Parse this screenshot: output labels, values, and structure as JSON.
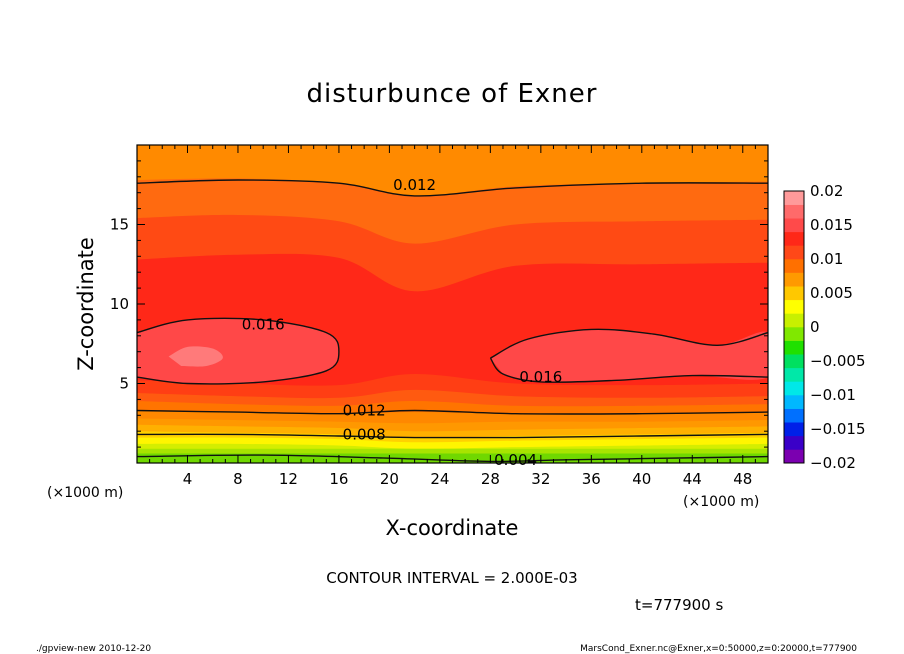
{
  "chart_data": {
    "type": "contour",
    "title": "disturbunce of Exner",
    "xlabel": "X-coordinate",
    "ylabel": "Z-coordinate",
    "x_unit": "(×1000 m)",
    "xlim": [
      0,
      50
    ],
    "ylim": [
      0,
      20
    ],
    "x_ticks": [
      "4",
      "8",
      "12",
      "16",
      "20",
      "24",
      "28",
      "32",
      "36",
      "40",
      "44",
      "48"
    ],
    "y_ticks": [
      "5",
      "10",
      "15"
    ],
    "contour_interval": "CONTOUR INTERVAL = 2.000E-03",
    "time_label": "t=777900 s",
    "colorbar": {
      "ticks": [
        "0.02",
        "0.015",
        "0.01",
        "0.005",
        "0",
        "−0.005",
        "−0.01",
        "−0.015",
        "−0.02"
      ],
      "range": [
        -0.02,
        0.02
      ],
      "colors": [
        "#7b00b0",
        "#3a00c8",
        "#0020e8",
        "#0070ff",
        "#00b8ff",
        "#00e8e8",
        "#00e8a8",
        "#00e060",
        "#20e000",
        "#80e800",
        "#c8f000",
        "#ffff00",
        "#ffc800",
        "#ff9a00",
        "#ff7000",
        "#ff4818",
        "#ff2818",
        "#ff4a4a",
        "#ff6a6a",
        "#ff9a9a"
      ]
    },
    "contour_labels": [
      {
        "text": "0.012",
        "x": 22,
        "z": 17.5
      },
      {
        "text": "0.016",
        "x": 10,
        "z": 8.7
      },
      {
        "text": "0.016",
        "x": 32,
        "z": 5.4
      },
      {
        "text": "0.012",
        "x": 18,
        "z": 3.3
      },
      {
        "text": "0.008",
        "x": 18,
        "z": 1.8
      },
      {
        "text": "0.004",
        "x": 30,
        "z": 0.2
      }
    ],
    "bands": [
      {
        "level": 0.002,
        "color": "#70d800",
        "z": [
          0.6,
          0.6,
          0.6,
          0.6,
          0.6,
          0.6,
          0.6
        ]
      },
      {
        "level": 0.003,
        "color": "#a8e400",
        "z": [
          0.9,
          0.9,
          0.9,
          0.9,
          0.9,
          0.9,
          0.9
        ]
      },
      {
        "level": 0.004,
        "color": "#d4ee00",
        "z": [
          1.2,
          1.2,
          1.1,
          0.9,
          1.0,
          1.1,
          1.2
        ]
      },
      {
        "level": 0.005,
        "color": "#fff500",
        "z": [
          1.6,
          1.6,
          1.5,
          1.3,
          1.4,
          1.5,
          1.6
        ]
      },
      {
        "level": 0.006,
        "color": "#ffd200",
        "z": [
          2.0,
          1.9,
          1.8,
          1.6,
          1.7,
          1.8,
          1.9
        ]
      },
      {
        "level": 0.007,
        "color": "#ffb000",
        "z": [
          2.4,
          2.3,
          2.2,
          2.0,
          2.1,
          2.2,
          2.3
        ]
      },
      {
        "level": 0.008,
        "color": "#ff9800",
        "z": [
          2.8,
          2.7,
          2.6,
          2.5,
          2.6,
          2.6,
          2.7
        ]
      },
      {
        "level": 0.009,
        "color": "#ff8800",
        "z": [
          3.3,
          3.2,
          3.1,
          3.2,
          3.1,
          3.1,
          3.2
        ]
      },
      {
        "level": 0.01,
        "color": "#ff7400",
        "z": [
          3.9,
          3.7,
          3.6,
          3.9,
          3.6,
          3.6,
          3.7
        ]
      },
      {
        "level": 0.011,
        "color": "#ff5a10",
        "z": [
          4.4,
          4.2,
          4.1,
          4.6,
          4.2,
          4.1,
          4.2
        ]
      },
      {
        "level": 0.012,
        "color": "#ff3e14",
        "z": [
          5.2,
          5.0,
          4.9,
          5.6,
          5.0,
          4.9,
          5.0
        ]
      },
      {
        "level": 0.013,
        "color": "#ff2818",
        "z": [
          12.8,
          13.1,
          12.9,
          10.8,
          12.4,
          12.5,
          12.6
        ]
      },
      {
        "level": 0.014,
        "color": "#ff4a14",
        "z": [
          15.4,
          15.6,
          15.2,
          13.8,
          15.0,
          15.2,
          15.3
        ]
      },
      {
        "level": 0.015,
        "color": "#ff6a10",
        "z": [
          17.8,
          17.9,
          17.6,
          16.8,
          17.4,
          17.6,
          17.7
        ]
      },
      {
        "level": 0.016,
        "color": "#ff8a00",
        "z": [
          20,
          20,
          20,
          20,
          20,
          20,
          20
        ]
      }
    ],
    "band_x": [
      0,
      8,
      16,
      22,
      30,
      40,
      50
    ],
    "blobs": [
      {
        "color": "#ff4848",
        "points": [
          [
            0,
            8.2
          ],
          [
            4,
            9.0
          ],
          [
            10,
            9.0
          ],
          [
            15,
            8.2
          ],
          [
            16,
            7.0
          ],
          [
            15,
            5.8
          ],
          [
            10,
            5.1
          ],
          [
            4,
            5.0
          ],
          [
            0,
            5.4
          ]
        ]
      },
      {
        "color": "#ff4848",
        "points": [
          [
            28,
            6.6
          ],
          [
            31,
            7.8
          ],
          [
            36,
            8.4
          ],
          [
            41,
            8.1
          ],
          [
            46,
            7.4
          ],
          [
            50,
            8.2
          ],
          [
            50,
            5.4
          ],
          [
            44,
            5.5
          ],
          [
            38,
            5.2
          ],
          [
            32,
            5.1
          ],
          [
            29,
            5.6
          ]
        ]
      },
      {
        "color": "#ff7a7a",
        "points": [
          [
            2.5,
            6.7
          ],
          [
            4,
            7.3
          ],
          [
            6,
            7.2
          ],
          [
            6.8,
            6.6
          ],
          [
            5.5,
            6.1
          ],
          [
            3.5,
            6.1
          ]
        ]
      }
    ],
    "contours": [
      {
        "points": [
          [
            0,
            17.6
          ],
          [
            8,
            17.8
          ],
          [
            16,
            17.6
          ],
          [
            22,
            16.8
          ],
          [
            30,
            17.3
          ],
          [
            40,
            17.6
          ],
          [
            50,
            17.6
          ]
        ]
      },
      {
        "points": [
          [
            0,
            8.2
          ],
          [
            4,
            9.0
          ],
          [
            10,
            9.0
          ],
          [
            15,
            8.2
          ],
          [
            16,
            7.0
          ],
          [
            15,
            5.8
          ],
          [
            10,
            5.1
          ],
          [
            4,
            5.0
          ],
          [
            0,
            5.4
          ]
        ]
      },
      {
        "points": [
          [
            28,
            6.6
          ],
          [
            31,
            7.8
          ],
          [
            36,
            8.4
          ],
          [
            41,
            8.1
          ],
          [
            46,
            7.4
          ],
          [
            50,
            8.2
          ]
        ]
      },
      {
        "points": [
          [
            28,
            6.6
          ],
          [
            29,
            5.6
          ],
          [
            32,
            5.1
          ],
          [
            38,
            5.2
          ],
          [
            44,
            5.5
          ],
          [
            50,
            5.4
          ]
        ]
      },
      {
        "points": [
          [
            0,
            3.3
          ],
          [
            8,
            3.2
          ],
          [
            16,
            3.1
          ],
          [
            22,
            3.3
          ],
          [
            30,
            3.1
          ],
          [
            40,
            3.1
          ],
          [
            50,
            3.2
          ]
        ]
      },
      {
        "points": [
          [
            0,
            1.8
          ],
          [
            8,
            1.8
          ],
          [
            16,
            1.7
          ],
          [
            22,
            1.6
          ],
          [
            30,
            1.6
          ],
          [
            40,
            1.7
          ],
          [
            50,
            1.8
          ]
        ]
      },
      {
        "points": [
          [
            0,
            0.4
          ],
          [
            10,
            0.5
          ],
          [
            20,
            0.3
          ],
          [
            28,
            0.1
          ],
          [
            34,
            0.2
          ],
          [
            42,
            0.3
          ],
          [
            50,
            0.4
          ]
        ]
      }
    ]
  },
  "footer": {
    "left": "./gpview-new  2010-12-20",
    "right": "MarsCond_Exner.nc@Exner,x=0:50000,z=0:20000,t=777900"
  }
}
